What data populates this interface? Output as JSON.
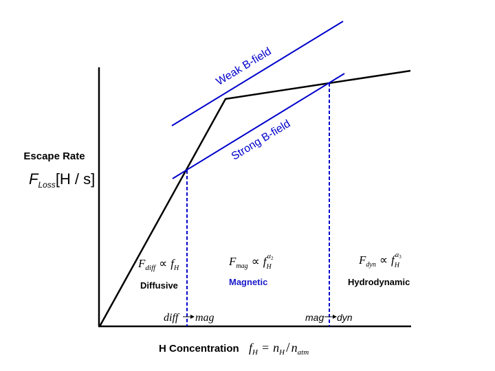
{
  "y_axis": {
    "label": "Escape Rate",
    "symbol_main": "F",
    "symbol_sub": "Loss",
    "unit": "[H / s]"
  },
  "x_axis": {
    "label": "H Concentration",
    "lhs_main": "f",
    "lhs_sub": "H",
    "eq": "=",
    "num_main": "n",
    "num_sub": "H",
    "slash": "/",
    "den_main": "n",
    "den_sub": "atm"
  },
  "lines": {
    "weak_label": "Weak B-field",
    "strong_label": "Strong B-field"
  },
  "regimes": {
    "diffusive": {
      "name": "Diffusive",
      "f_main": "F",
      "f_sub": "diff",
      "prop": "∝",
      "rhs_main": "f",
      "rhs_sub": "H"
    },
    "magnetic": {
      "name": "Magnetic",
      "f_main": "F",
      "f_sub": "mag",
      "prop": "∝",
      "rhs_main": "f",
      "rhs_sub": "H",
      "exp_main": "α",
      "exp_sub": "2"
    },
    "hydrodynamic": {
      "name": "Hydrodynamic",
      "f_main": "F",
      "f_sub": "dyn",
      "prop": "∝",
      "rhs_main": "f",
      "rhs_sub": "H",
      "exp_main": "α",
      "exp_sub": "3"
    }
  },
  "transitions": {
    "diff_mag_left": "diff",
    "diff_mag_right": "mag",
    "mag_dyn_left": "mag",
    "mag_dyn_right": "dyn"
  },
  "colors": {
    "axis": "#000000",
    "curve": "#000000",
    "field_line": "#0000cc",
    "magnetic_label": "#1a1acc"
  }
}
